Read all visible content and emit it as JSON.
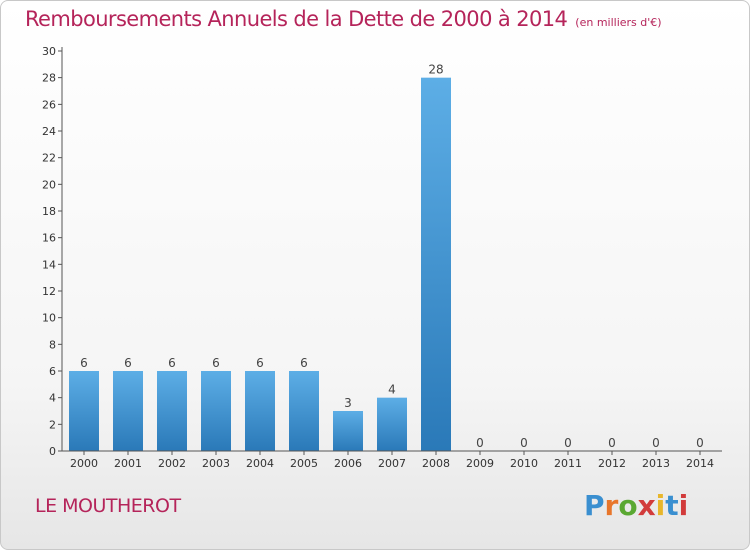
{
  "page": {
    "title": "Remboursements Annuels de la Dette de 2000 à 2014",
    "unit": "(en milliers d'€)",
    "commune": "LE MOUTHEROT",
    "logo": {
      "letters": [
        "P",
        "r",
        "o",
        "x",
        "i",
        "t",
        "i"
      ],
      "colors": [
        "#3a8fd0",
        "#e8762b",
        "#5aa832",
        "#d23b3b",
        "#e8b62b",
        "#3a8fd0",
        "#d23b3b"
      ]
    }
  },
  "chart_data": {
    "type": "bar",
    "title": "Remboursements Annuels de la Dette de 2000 à 2014",
    "subtitle": "(en milliers d'€)",
    "xlabel": "",
    "ylabel": "",
    "categories": [
      "2000",
      "2001",
      "2002",
      "2003",
      "2004",
      "2005",
      "2006",
      "2007",
      "2008",
      "2009",
      "2010",
      "2011",
      "2012",
      "2013",
      "2014"
    ],
    "values": [
      6,
      6,
      6,
      6,
      6,
      6,
      3,
      4,
      28,
      0,
      0,
      0,
      0,
      0,
      0
    ],
    "ylim": [
      0,
      30
    ],
    "yticks": [
      0,
      2,
      4,
      6,
      8,
      10,
      12,
      14,
      16,
      18,
      20,
      22,
      24,
      26,
      28,
      30
    ],
    "grid": false,
    "bar_color_top": "#5daee6",
    "bar_color_bottom": "#2a79b8"
  }
}
